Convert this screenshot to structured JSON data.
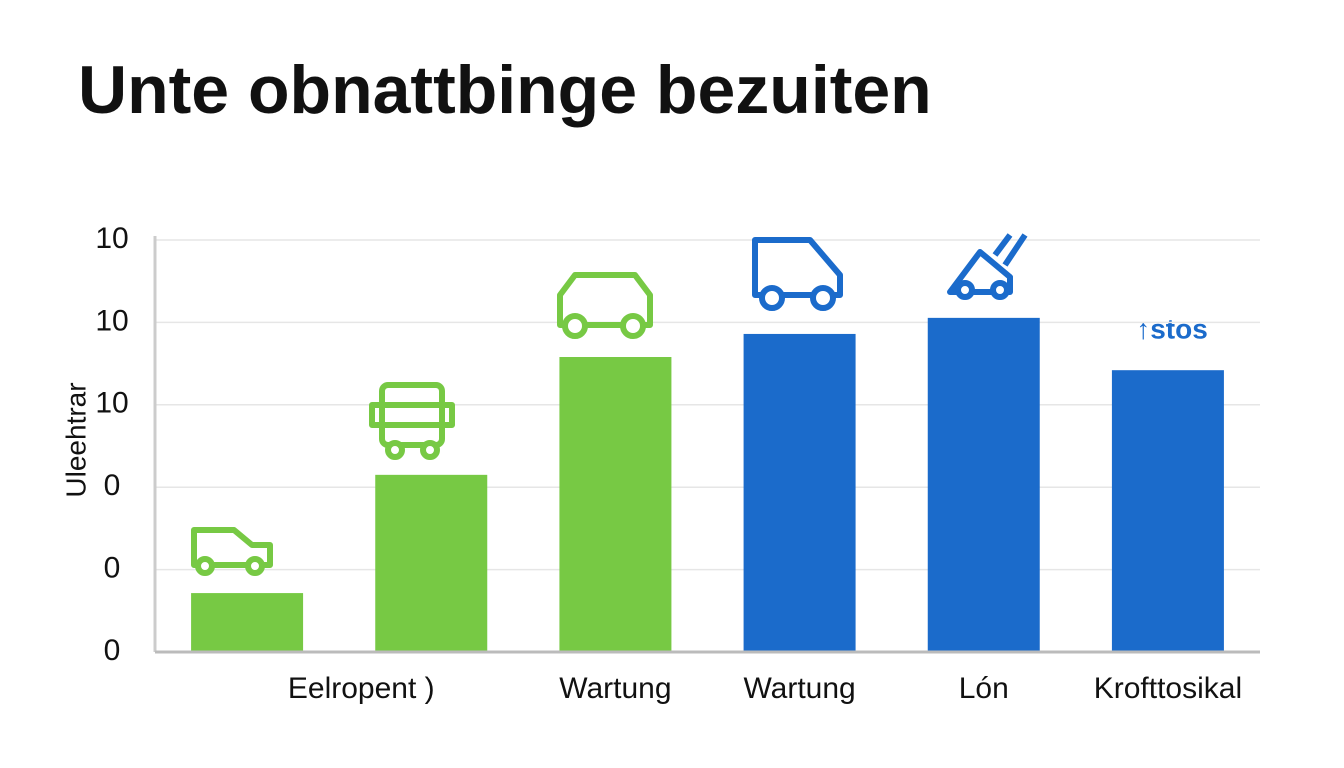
{
  "chart_data": {
    "type": "bar",
    "title": "Unte obnattbinge bezuiten",
    "y_label": "Uleehtrar",
    "annotation": "↑stos",
    "categories": [
      null,
      "Eelropent )",
      "Wartung",
      "Wartung",
      "Lón",
      "Krofttosikal"
    ],
    "values": [
      1.43,
      4.3,
      7.16,
      7.72,
      8.11,
      6.84
    ],
    "colors": [
      "#77c944",
      "#77c944",
      "#77c944",
      "#1b6bcb",
      "#1b6bcb",
      "#1b6bcb"
    ],
    "ylim": [
      0,
      10
    ],
    "yticks": [
      0,
      {
        "value": 2,
        "label": "0"
      },
      {
        "value": 4,
        "label": "0"
      },
      {
        "value": 6,
        "label": "10"
      },
      {
        "value": 8,
        "label": "10"
      },
      10
    ],
    "grid": true
  }
}
